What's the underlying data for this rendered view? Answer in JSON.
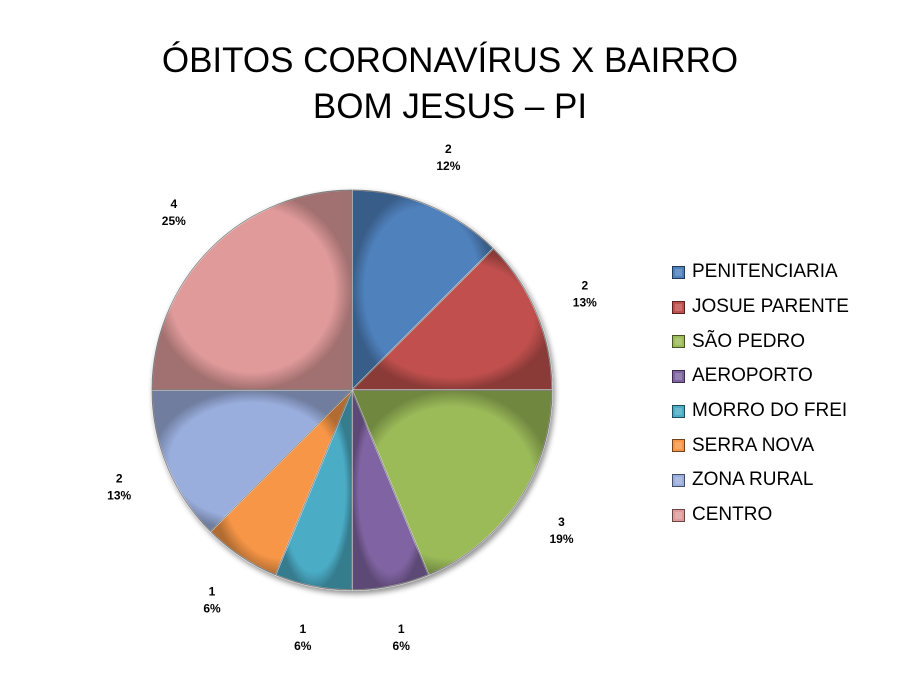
{
  "chart_data": {
    "type": "pie",
    "title_lines": [
      "ÓBITOS CORONAVÍRUS X BAIRRO",
      "BOM JESUS – PI"
    ],
    "categories": [
      "PENITENCIARIA",
      "JOSUE PARENTE",
      "SÃO PEDRO",
      "AEROPORTO",
      "MORRO DO FREI",
      "SERRA NOVA",
      "ZONA RURAL",
      "CENTRO"
    ],
    "values": [
      2,
      2,
      3,
      1,
      1,
      1,
      2,
      4
    ],
    "percent_labels": [
      "12%",
      "13%",
      "19%",
      "6%",
      "6%",
      "6%",
      "13%",
      "25%"
    ],
    "colors": [
      "#4f81bd",
      "#c0504d",
      "#9bbb59",
      "#8064a2",
      "#4bacc6",
      "#f79646",
      "#9aaedd",
      "#e09a9a"
    ],
    "legend_position": "right",
    "start_angle": "12 o'clock",
    "direction": "clockwise"
  }
}
